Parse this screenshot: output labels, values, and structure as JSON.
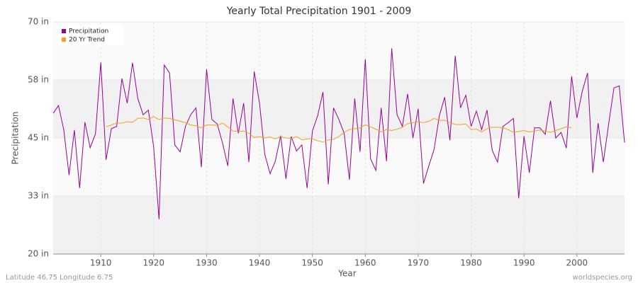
{
  "chart_data": {
    "type": "line",
    "title": "Yearly Total Precipitation 1901 - 2009",
    "x_label": "Year",
    "y_label": "Precipitation",
    "footer_left": "Latitude 46.75 Longitude 6.75",
    "footer_right": "worldspecies.org",
    "legend": "upper left",
    "grid": true,
    "xlim": [
      1901,
      2009
    ],
    "xticks": [
      1910,
      1920,
      1930,
      1940,
      1950,
      1960,
      1970,
      1980,
      1990,
      2000
    ],
    "ylim": [
      20,
      70
    ],
    "yticks": [
      {
        "value": 20,
        "label": "20 in"
      },
      {
        "value": 32.5,
        "label": "33 in"
      },
      {
        "value": 45,
        "label": "45 in"
      },
      {
        "value": 57.5,
        "label": "58 in"
      },
      {
        "value": 70,
        "label": "70 in"
      }
    ],
    "x": [
      1901,
      1902,
      1903,
      1904,
      1905,
      1906,
      1907,
      1908,
      1909,
      1910,
      1911,
      1912,
      1913,
      1914,
      1915,
      1916,
      1917,
      1918,
      1919,
      1920,
      1921,
      1922,
      1923,
      1924,
      1925,
      1926,
      1927,
      1928,
      1929,
      1930,
      1931,
      1932,
      1933,
      1934,
      1935,
      1936,
      1937,
      1938,
      1939,
      1940,
      1941,
      1942,
      1943,
      1944,
      1945,
      1946,
      1947,
      1948,
      1949,
      1950,
      1951,
      1952,
      1953,
      1954,
      1955,
      1956,
      1957,
      1958,
      1959,
      1960,
      1961,
      1962,
      1963,
      1964,
      1965,
      1966,
      1967,
      1968,
      1969,
      1970,
      1971,
      1972,
      1973,
      1974,
      1975,
      1976,
      1977,
      1978,
      1979,
      1980,
      1981,
      1982,
      1983,
      1984,
      1985,
      1986,
      1987,
      1988,
      1989,
      1990,
      1991,
      1992,
      1993,
      1994,
      1995,
      1996,
      1997,
      1998,
      1999,
      2000,
      2001,
      2002,
      2003,
      2004,
      2005,
      2006,
      2007,
      2008,
      2009
    ],
    "series": [
      {
        "name": "Precipitation",
        "color": "#990099",
        "values": [
          50.3,
          52,
          46.8,
          37,
          46.7,
          34.2,
          48.4,
          42.9,
          45.9,
          61.3,
          40.3,
          47,
          47.5,
          57.8,
          52.5,
          61.2,
          53.5,
          50,
          51,
          43,
          27.5,
          60.7,
          59,
          43.5,
          42,
          47.5,
          50,
          51.5,
          38.7,
          59.8,
          49,
          48,
          44,
          39,
          53.5,
          46,
          52.5,
          39.8,
          59.3,
          52.5,
          41.5,
          37.3,
          40,
          45.5,
          36.2,
          45.3,
          42.2,
          43.5,
          34.2,
          46.5,
          49.8,
          54.9,
          35,
          51.5,
          49,
          46,
          36,
          53.5,
          42,
          62,
          40.5,
          38,
          51.5,
          40,
          64.3,
          50,
          47.5,
          54.5,
          45,
          51.3,
          35.2,
          39,
          42.5,
          49.8,
          53.8,
          44.5,
          62.7,
          51.5,
          54.2,
          47.5,
          50.8,
          46.8,
          51,
          42.3,
          39.8,
          47.5,
          48.3,
          49.2,
          32,
          45.4,
          37.5,
          47.2,
          47.2,
          45.8,
          53,
          45,
          46.2,
          42.8,
          58.3,
          49.3,
          55,
          59,
          37.5,
          48.2,
          39.8,
          48,
          55.8,
          56.2,
          44
        ]
      },
      {
        "name": "20 Yr Trend",
        "color": "#f5a020",
        "values": [
          null,
          null,
          null,
          null,
          null,
          null,
          null,
          null,
          null,
          null,
          47.4,
          47.8,
          48.2,
          48.2,
          48.5,
          48.4,
          49.2,
          49.3,
          49.0,
          49.6,
          49.0,
          49.3,
          49.2,
          48.9,
          48.6,
          48.3,
          47.8,
          47.6,
          47.2,
          47.8,
          47.8,
          47.7,
          48.2,
          47.4,
          46.5,
          46.4,
          46.5,
          46.0,
          45.1,
          45.3,
          45.0,
          45.2,
          44.8,
          45.3,
          45.0,
          44.9,
          45.3,
          44.6,
          44.8,
          44.8,
          44.4,
          44.1,
          44.6,
          44.7,
          45.3,
          46.2,
          46.8,
          47.0,
          47.2,
          47.8,
          47.4,
          46.9,
          46.3,
          46.8,
          46.6,
          46.9,
          47.3,
          48.1,
          48.3,
          48.5,
          48.3,
          48.6,
          49.2,
          48.8,
          48.8,
          48.3,
          47.9,
          47.9,
          48.0,
          46.8,
          46.9,
          46.3,
          47.0,
          47.3,
          47.3,
          47.2,
          46.8,
          46.2,
          46.4,
          46.6,
          46.3,
          46.5,
          46.7,
          46.5,
          46.2,
          46.6,
          47.0,
          47.4,
          47.2,
          null,
          null,
          null,
          null,
          null,
          null,
          null,
          null,
          null,
          null
        ]
      }
    ]
  }
}
